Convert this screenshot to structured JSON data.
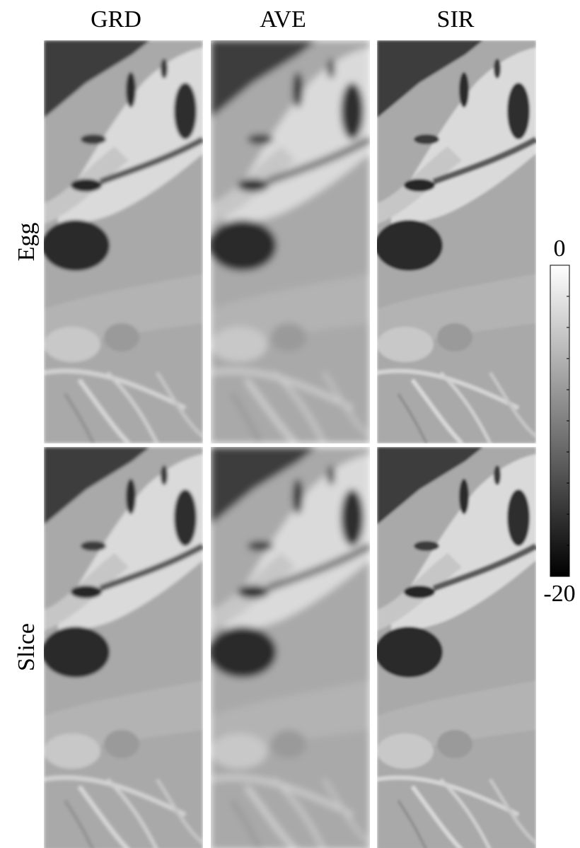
{
  "columns": [
    "GRD",
    "AVE",
    "SIR"
  ],
  "rows": [
    "Egg",
    "Slice"
  ],
  "colorbar": {
    "max": 0,
    "min": -20
  }
}
